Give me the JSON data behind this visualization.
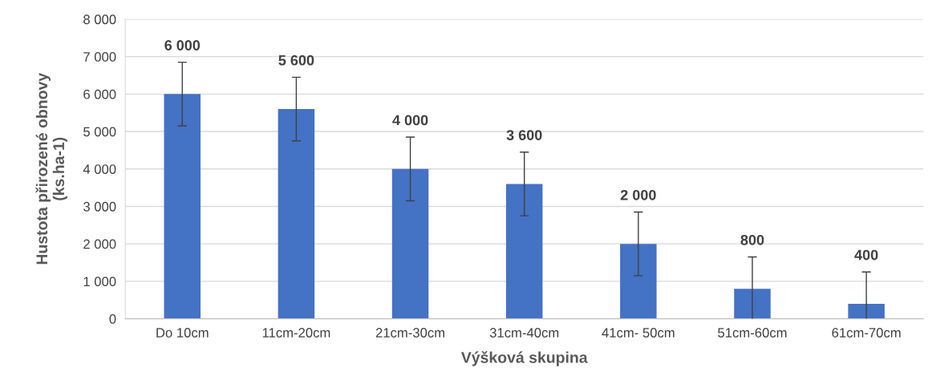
{
  "chart_data": {
    "type": "bar",
    "xlabel": "Výšková skupina",
    "ylabel": "Hustota přirozené obnovy\n(ks.ha-1)",
    "categories": [
      "Do 10cm",
      "11cm-20cm",
      "21cm-30cm",
      "31cm-40cm",
      "41cm- 50cm",
      "51cm-60cm",
      "61cm-70cm"
    ],
    "values": [
      6000,
      5600,
      4000,
      3600,
      2000,
      800,
      400
    ],
    "errors": [
      850,
      850,
      850,
      850,
      850,
      850,
      850
    ],
    "value_labels": [
      "6 000",
      "5 600",
      "4 000",
      "3 600",
      "2 000",
      "800",
      "400"
    ],
    "color": "#4472c4",
    "ylim": [
      0,
      8000
    ],
    "yticks": [
      {
        "value": 0,
        "label": "0"
      },
      {
        "value": 1000,
        "label": "1 000"
      },
      {
        "value": 2000,
        "label": "2 000"
      },
      {
        "value": 3000,
        "label": "3 000"
      },
      {
        "value": 4000,
        "label": "4 000"
      },
      {
        "value": 5000,
        "label": "5 000"
      },
      {
        "value": 6000,
        "label": "6 000"
      },
      {
        "value": 7000,
        "label": "7 000"
      },
      {
        "value": 8000,
        "label": "8 000"
      }
    ],
    "grid": "y"
  }
}
